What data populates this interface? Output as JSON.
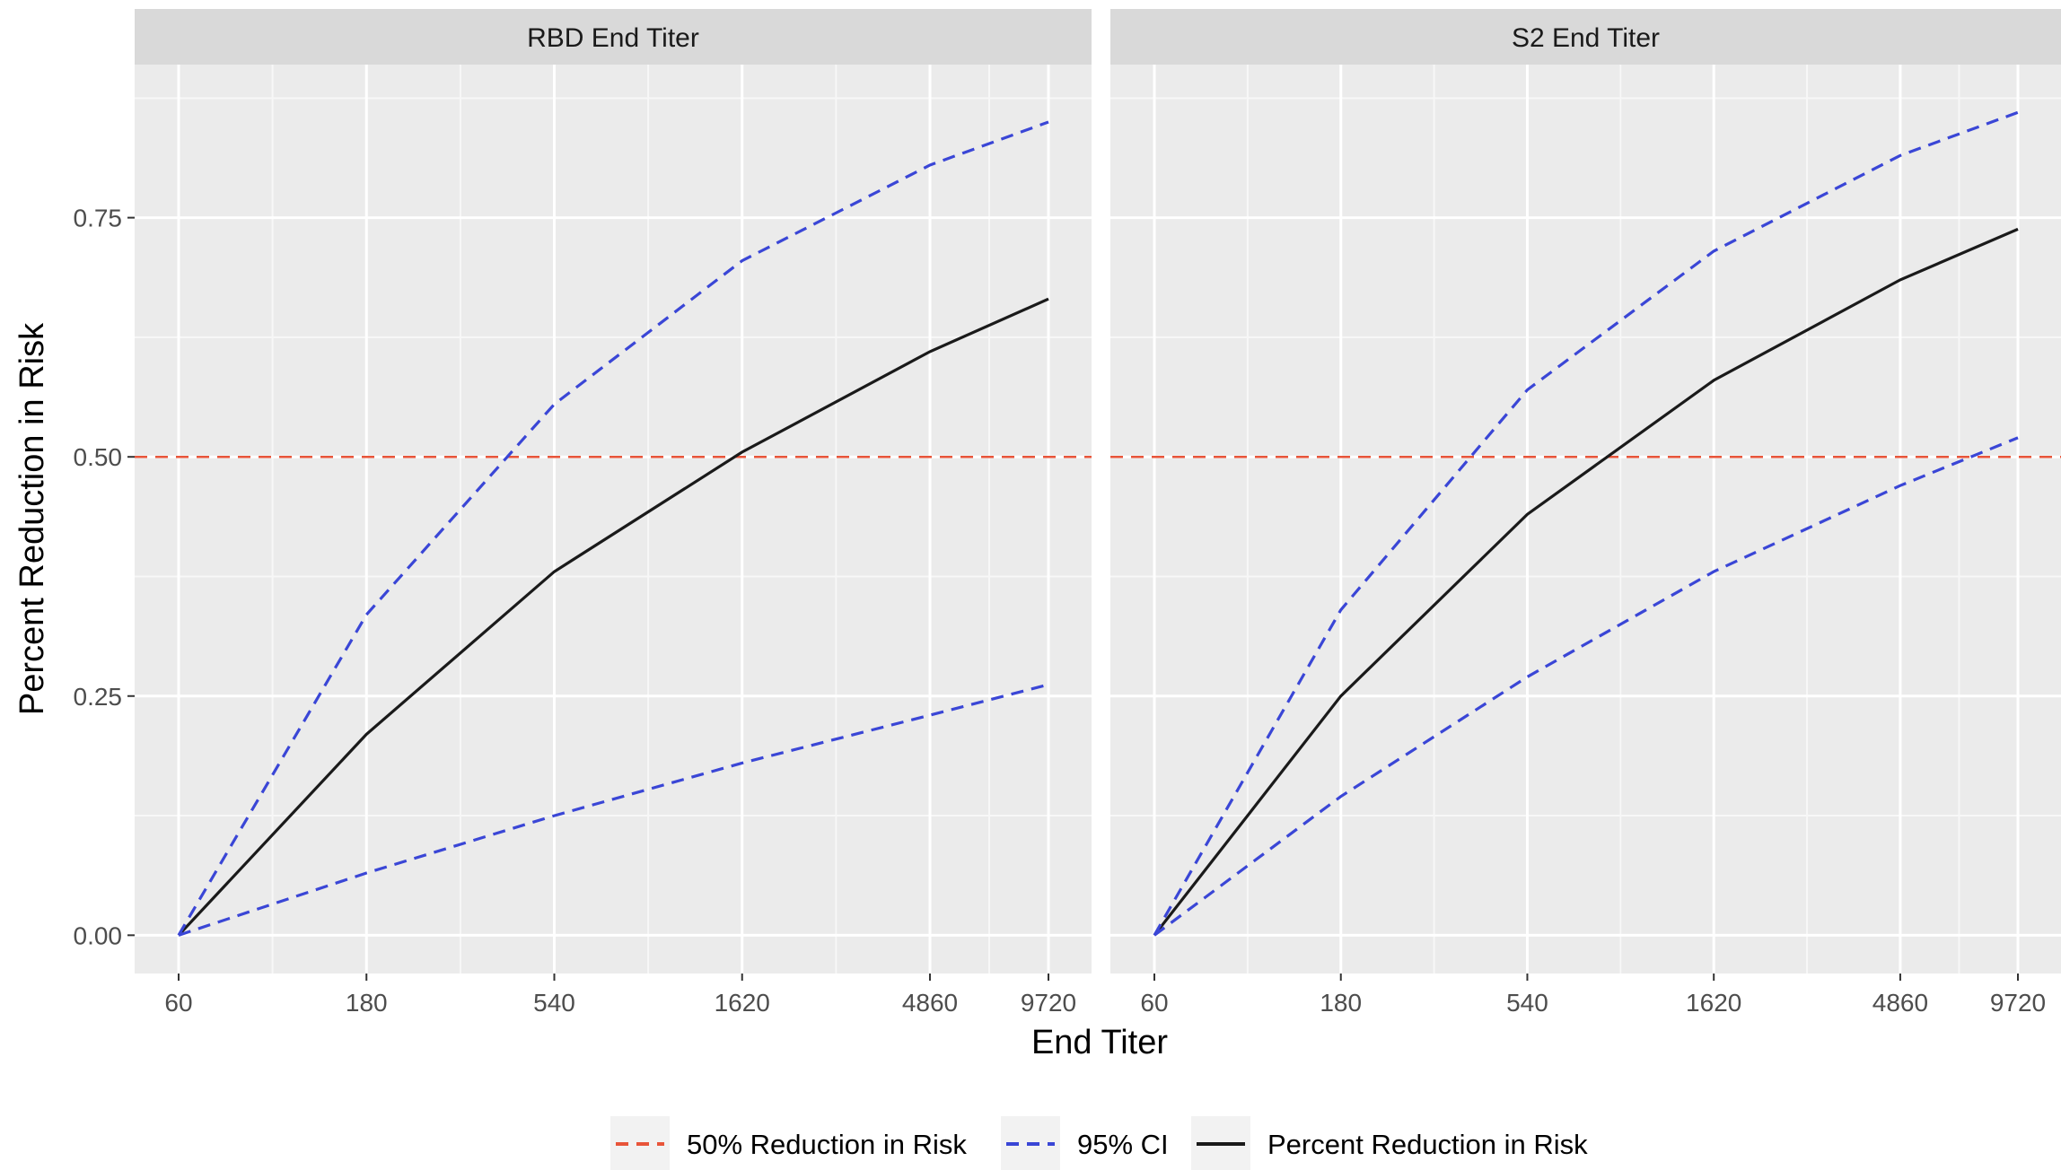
{
  "chart_data": {
    "type": "line",
    "xlabel": "End Titer",
    "ylabel": "Percent Reduction in Risk",
    "x_scale": "log",
    "x": [
      60,
      180,
      540,
      1620,
      4860,
      9720
    ],
    "xtick_labels": [
      "60",
      "180",
      "540",
      "1620",
      "4860",
      "9720"
    ],
    "ylim": [
      -0.04,
      0.91
    ],
    "yticks": [
      0.0,
      0.25,
      0.5,
      0.75
    ],
    "ytick_labels": [
      "0.00",
      "0.25",
      "0.50",
      "0.75"
    ],
    "grid": true,
    "legend_position": "bottom",
    "legend": [
      {
        "label": "50% Reduction in Risk",
        "color": "#e8553a",
        "dash": true
      },
      {
        "label": "95% CI",
        "color": "#3a46d6",
        "dash": true
      },
      {
        "label": "Percent Reduction in Risk",
        "color": "#1a1a1a",
        "dash": false
      }
    ],
    "reference_line": {
      "y": 0.5,
      "color": "#e8553a"
    },
    "panels": [
      {
        "title": "RBD End Titer",
        "series": [
          {
            "name": "Percent Reduction in Risk",
            "values": [
              0.0,
              0.21,
              0.38,
              0.505,
              0.61,
              0.665
            ]
          },
          {
            "name": "95% CI",
            "values": [
              0.0,
              0.335,
              0.555,
              0.705,
              0.805,
              0.85
            ]
          },
          {
            "name": "95% CI",
            "values": [
              0.0,
              0.065,
              0.125,
              0.18,
              0.23,
              0.262
            ]
          }
        ]
      },
      {
        "title": "S2 End Titer",
        "series": [
          {
            "name": "Percent Reduction in Risk",
            "values": [
              0.0,
              0.25,
              0.44,
              0.58,
              0.685,
              0.738
            ]
          },
          {
            "name": "95% CI",
            "values": [
              0.0,
              0.34,
              0.57,
              0.715,
              0.815,
              0.86
            ]
          },
          {
            "name": "95% CI",
            "values": [
              0.0,
              0.145,
              0.27,
              0.38,
              0.47,
              0.52
            ]
          }
        ]
      }
    ]
  }
}
